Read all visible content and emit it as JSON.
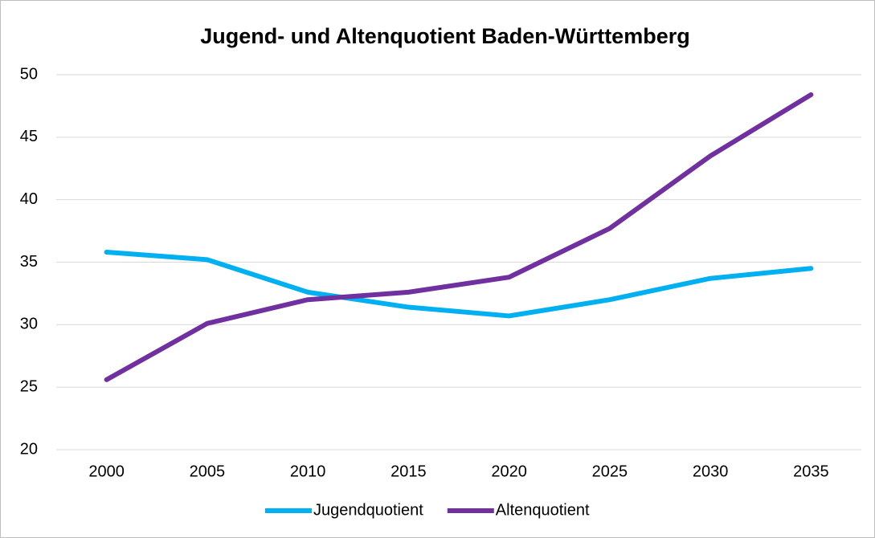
{
  "chart_data": {
    "type": "line",
    "title": "Jugend- und Altenquotient Baden-Württemberg",
    "categories": [
      "2000",
      "2005",
      "2010",
      "2015",
      "2020",
      "2025",
      "2030",
      "2035"
    ],
    "series": [
      {
        "name": "Jugendquotient",
        "color": "#00b0f0",
        "values": [
          35.8,
          35.2,
          32.6,
          31.4,
          30.7,
          32.0,
          33.7,
          34.5
        ]
      },
      {
        "name": "Altenquotient",
        "color": "#7030a0",
        "values": [
          25.6,
          30.1,
          32.0,
          32.6,
          33.8,
          37.7,
          43.5,
          48.4
        ]
      }
    ],
    "ylim": [
      20,
      50
    ],
    "yticks": [
      20,
      25,
      30,
      35,
      40,
      45,
      50
    ],
    "grid": true,
    "legend": "bottom"
  }
}
